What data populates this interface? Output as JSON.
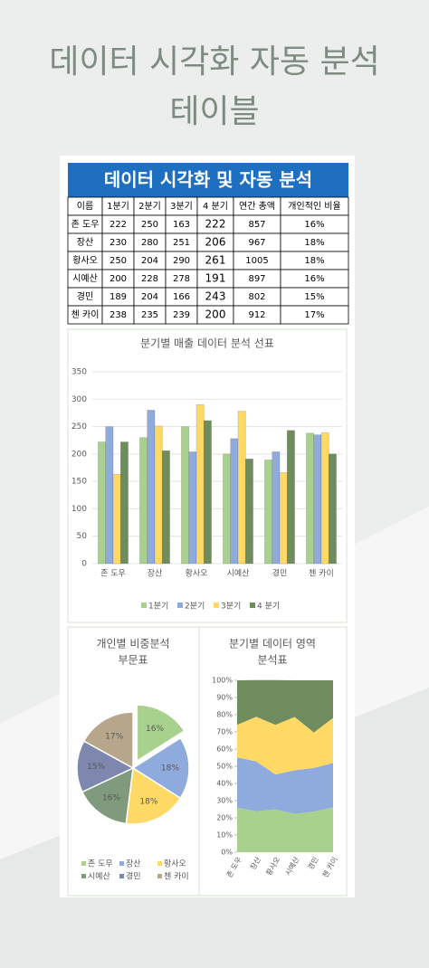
{
  "header": {
    "lines": [
      "데이터 시각화 자동 분석",
      "테이블"
    ]
  },
  "table": {
    "title": "데이터 시각화 및 자동 분석",
    "columns": [
      "이름",
      "1분기",
      "2분기",
      "3분기",
      "4 분기",
      "연간 총액",
      "개인적인 비율"
    ],
    "rows": [
      [
        "존 도우",
        222,
        250,
        163,
        222,
        857,
        "16%"
      ],
      [
        "장산",
        230,
        280,
        251,
        206,
        967,
        "18%"
      ],
      [
        "황사오",
        250,
        204,
        290,
        261,
        1005,
        "18%"
      ],
      [
        "시예산",
        200,
        228,
        278,
        191,
        897,
        "16%"
      ],
      [
        "경민",
        189,
        204,
        166,
        243,
        802,
        "15%"
      ],
      [
        "첸 카이",
        238,
        235,
        239,
        200,
        912,
        "17%"
      ]
    ]
  },
  "chart_data": [
    {
      "type": "bar",
      "title": "분기별 매출 데이터 분석 선표",
      "categories": [
        "존 도우",
        "장산",
        "황사오",
        "시예산",
        "경민",
        "첸 카이"
      ],
      "series": [
        {
          "name": "1분기",
          "color": "#a9d18e",
          "values": [
            222,
            230,
            250,
            200,
            189,
            238
          ]
        },
        {
          "name": "2분기",
          "color": "#8faadc",
          "values": [
            250,
            280,
            204,
            228,
            204,
            235
          ]
        },
        {
          "name": "3분기",
          "color": "#ffd966",
          "values": [
            163,
            251,
            290,
            278,
            166,
            239
          ]
        },
        {
          "name": "4 분기",
          "color": "#6f8c5f",
          "values": [
            222,
            206,
            261,
            191,
            243,
            200
          ]
        }
      ],
      "ylim": [
        0,
        350
      ],
      "yticks": [
        0,
        50,
        100,
        150,
        200,
        250,
        300,
        350
      ],
      "grid": true,
      "legend": "bottom"
    },
    {
      "type": "pie",
      "title_lines": [
        "개인별 비중분석",
        "부문표"
      ],
      "categories": [
        "존 도우",
        "장산",
        "황사오",
        "시예산",
        "경민",
        "첸 카이"
      ],
      "values": [
        16,
        18,
        18,
        16,
        15,
        17
      ],
      "value_labels": [
        "16%",
        "18%",
        "18%",
        "16%",
        "15%",
        "17%"
      ],
      "colors": [
        "#a9d18e",
        "#8faadc",
        "#ffd966",
        "#7f9a7c",
        "#7e87ad",
        "#b7a68c"
      ],
      "exploded": [
        0
      ],
      "legend": "bottom"
    },
    {
      "type": "area",
      "title_lines": [
        "분기별 데이터 영역",
        "분석표"
      ],
      "categories": [
        "존 도우",
        "장산",
        "황사오",
        "시예산",
        "경민",
        "첸 카이"
      ],
      "series": [
        {
          "color": "#a9d18e",
          "values": [
            25.9,
            23.8,
            24.9,
            22.3,
            23.6,
            26.1
          ]
        },
        {
          "color": "#8faadc",
          "values": [
            29.2,
            29.0,
            20.3,
            25.4,
            25.4,
            25.8
          ]
        },
        {
          "color": "#ffd966",
          "values": [
            19.0,
            26.0,
            28.9,
            31.0,
            20.7,
            26.2
          ]
        },
        {
          "color": "#6f8c5f",
          "values": [
            25.9,
            21.3,
            26.0,
            21.3,
            30.3,
            21.9
          ]
        }
      ],
      "stacked": true,
      "ylim": [
        0,
        100
      ],
      "yticks": [
        {
          "value": 0,
          "label": "0%"
        },
        {
          "value": 10,
          "label": "10%"
        },
        {
          "value": 20,
          "label": "20%"
        },
        {
          "value": 30,
          "label": "30%"
        },
        {
          "value": 40,
          "label": "40%"
        },
        {
          "value": 50,
          "label": "50%"
        },
        {
          "value": 60,
          "label": "60%"
        },
        {
          "value": 70,
          "label": "70%"
        },
        {
          "value": 80,
          "label": "80%"
        },
        {
          "value": 90,
          "label": "90%"
        },
        {
          "value": 100,
          "label": "100%"
        }
      ]
    }
  ]
}
